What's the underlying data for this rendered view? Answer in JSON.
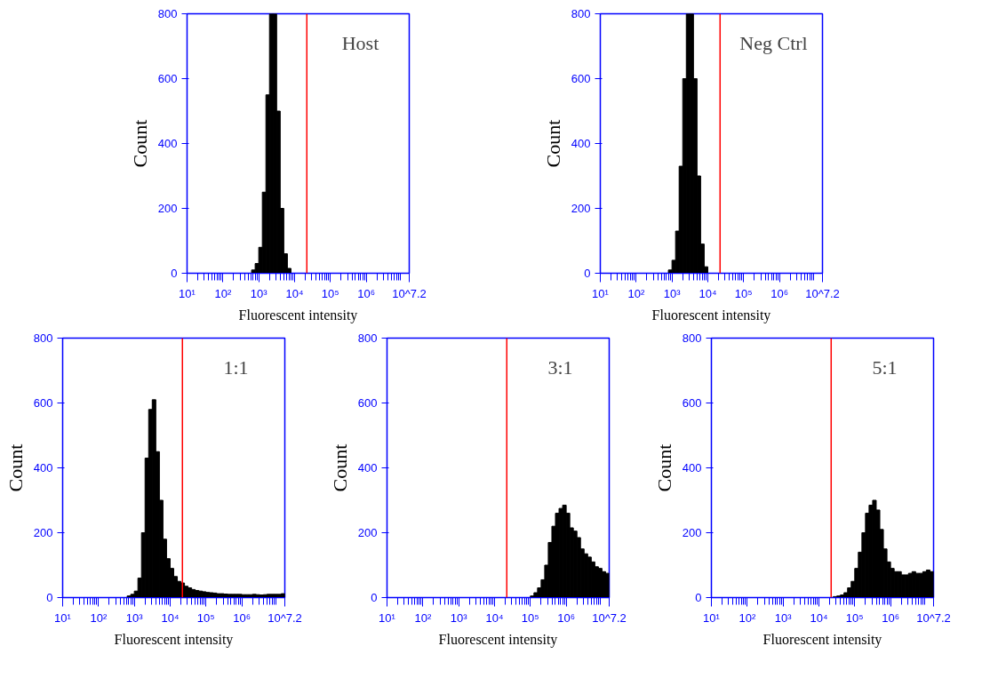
{
  "chart_data": [
    {
      "type": "histogram",
      "annotations": [
        "Host"
      ],
      "xlabel": "Fluorescent intensity",
      "ylabel": "Count",
      "log": "x",
      "grid": false,
      "color": "#000000",
      "xlim": [
        10,
        15848932
      ],
      "xticks": [
        {
          "value": 10,
          "label": "10¹"
        },
        {
          "value": 100,
          "label": "10²"
        },
        {
          "value": 1000,
          "label": "10³"
        },
        {
          "value": 10000,
          "label": "10⁴"
        },
        {
          "value": 100000,
          "label": "10⁵"
        },
        {
          "value": 1000000,
          "label": "10⁶"
        },
        {
          "value": 15848932,
          "label": "10^7.2"
        }
      ],
      "ylim": [
        0,
        800
      ],
      "yticks": [
        0,
        200,
        400,
        600,
        800
      ],
      "ref_lines": [
        {
          "axis": "x",
          "value": 22000,
          "color": "#ff0000"
        }
      ],
      "bins": [
        631,
        794,
        1000,
        1259,
        1585,
        1995,
        2512,
        3162,
        3981,
        5012,
        6310,
        7943
      ],
      "values": [
        10,
        30,
        80,
        250,
        550,
        800,
        800,
        500,
        200,
        60,
        15
      ]
    },
    {
      "type": "histogram",
      "annotations": [
        "Neg Ctrl"
      ],
      "xlabel": "Fluorescent intensity",
      "ylabel": "Count",
      "log": "x",
      "grid": false,
      "color": "#000000",
      "xlim": [
        10,
        15848932
      ],
      "xticks": [
        {
          "value": 10,
          "label": "10¹"
        },
        {
          "value": 100,
          "label": "10²"
        },
        {
          "value": 1000,
          "label": "10³"
        },
        {
          "value": 10000,
          "label": "10⁴"
        },
        {
          "value": 100000,
          "label": "10⁵"
        },
        {
          "value": 1000000,
          "label": "10⁶"
        },
        {
          "value": 15848932,
          "label": "10^7.2"
        }
      ],
      "ylim": [
        0,
        800
      ],
      "yticks": [
        0,
        200,
        400,
        600,
        800
      ],
      "ref_lines": [
        {
          "axis": "x",
          "value": 22000,
          "color": "#ff0000"
        }
      ],
      "bins": [
        794,
        1000,
        1259,
        1585,
        1995,
        2512,
        3162,
        3981,
        5012,
        6310,
        7943,
        10000
      ],
      "values": [
        10,
        40,
        130,
        330,
        600,
        800,
        800,
        600,
        300,
        90,
        20
      ]
    },
    {
      "type": "histogram",
      "annotations": [
        "1:1"
      ],
      "xlabel": "Fluorescent intensity",
      "ylabel": "Count",
      "log": "x",
      "grid": false,
      "color": "#000000",
      "xlim": [
        10,
        15848932
      ],
      "xticks": [
        {
          "value": 10,
          "label": "10¹"
        },
        {
          "value": 100,
          "label": "10²"
        },
        {
          "value": 1000,
          "label": "10³"
        },
        {
          "value": 10000,
          "label": "10⁴"
        },
        {
          "value": 100000,
          "label": "10⁵"
        },
        {
          "value": 1000000,
          "label": "10⁶"
        },
        {
          "value": 15848932,
          "label": "10^7.2"
        }
      ],
      "ylim": [
        0,
        800
      ],
      "yticks": [
        0,
        200,
        400,
        600,
        800
      ],
      "ref_lines": [
        {
          "axis": "x",
          "value": 22000,
          "color": "#ff0000"
        }
      ],
      "bins": [
        631,
        794,
        1000,
        1259,
        1585,
        1995,
        2512,
        3162,
        3981,
        5012,
        6310,
        7943,
        10000,
        12589,
        15849,
        19953,
        25119,
        31623,
        39811,
        50119,
        63096,
        79433,
        100000,
        125893,
        158489,
        199526,
        251189,
        316228,
        398107,
        501187,
        630957,
        794328,
        1000000,
        1258925,
        1584893,
        1995262,
        2511886,
        3162278,
        3981072,
        5011872,
        6309573,
        7943282,
        10000000,
        12589254,
        15848932
      ],
      "values": [
        5,
        10,
        20,
        60,
        200,
        430,
        580,
        610,
        450,
        300,
        180,
        120,
        90,
        65,
        50,
        45,
        35,
        30,
        25,
        22,
        20,
        18,
        16,
        15,
        14,
        12,
        12,
        11,
        10,
        10,
        10,
        10,
        9,
        9,
        9,
        10,
        9,
        8,
        9,
        10,
        10,
        10,
        10,
        12
      ]
    },
    {
      "type": "histogram",
      "annotations": [
        "3:1"
      ],
      "xlabel": "Fluorescent intensity",
      "ylabel": "Count",
      "log": "x",
      "grid": false,
      "color": "#000000",
      "xlim": [
        10,
        15848932
      ],
      "xticks": [
        {
          "value": 10,
          "label": "10¹"
        },
        {
          "value": 100,
          "label": "10²"
        },
        {
          "value": 1000,
          "label": "10³"
        },
        {
          "value": 10000,
          "label": "10⁴"
        },
        {
          "value": 100000,
          "label": "10⁵"
        },
        {
          "value": 1000000,
          "label": "10⁶"
        },
        {
          "value": 15848932,
          "label": "10^7.2"
        }
      ],
      "ylim": [
        0,
        800
      ],
      "yticks": [
        0,
        200,
        400,
        600,
        800
      ],
      "ref_lines": [
        {
          "axis": "x",
          "value": 22000,
          "color": "#ff0000"
        }
      ],
      "bins": [
        100000,
        125893,
        158489,
        199526,
        251189,
        316228,
        398107,
        501187,
        630957,
        794328,
        1000000,
        1258925,
        1584893,
        1995262,
        2511886,
        3162278,
        3981072,
        5011872,
        6309573,
        7943282,
        10000000,
        12589254,
        15848932
      ],
      "values": [
        5,
        15,
        30,
        55,
        100,
        170,
        220,
        260,
        275,
        285,
        260,
        215,
        205,
        185,
        150,
        135,
        125,
        110,
        95,
        90,
        80,
        75
      ]
    },
    {
      "type": "histogram",
      "annotations": [
        "5:1"
      ],
      "xlabel": "Fluorescent intensity",
      "ylabel": "Count",
      "log": "x",
      "grid": false,
      "color": "#000000",
      "xlim": [
        10,
        15848932
      ],
      "xticks": [
        {
          "value": 10,
          "label": "10¹"
        },
        {
          "value": 100,
          "label": "10²"
        },
        {
          "value": 1000,
          "label": "10³"
        },
        {
          "value": 10000,
          "label": "10⁴"
        },
        {
          "value": 100000,
          "label": "10⁵"
        },
        {
          "value": 1000000,
          "label": "10⁶"
        },
        {
          "value": 15848932,
          "label": "10^7.2"
        }
      ],
      "ylim": [
        0,
        800
      ],
      "yticks": [
        0,
        200,
        400,
        600,
        800
      ],
      "ref_lines": [
        {
          "axis": "x",
          "value": 22000,
          "color": "#ff0000"
        }
      ],
      "bins": [
        25119,
        31623,
        39811,
        50119,
        63096,
        79433,
        100000,
        125893,
        158489,
        199526,
        251189,
        316228,
        398107,
        501187,
        630957,
        794328,
        1000000,
        1258925,
        1584893,
        1995262,
        2511886,
        3162278,
        3981072,
        5011872,
        6309573,
        7943282,
        10000000,
        12589254,
        15848932
      ],
      "values": [
        3,
        5,
        8,
        15,
        30,
        50,
        90,
        140,
        200,
        260,
        285,
        300,
        270,
        210,
        150,
        110,
        90,
        80,
        80,
        70,
        70,
        75,
        80,
        75,
        75,
        80,
        85,
        80
      ]
    }
  ]
}
